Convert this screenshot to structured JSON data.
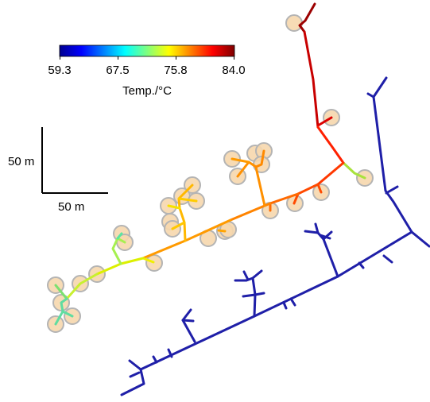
{
  "colorbar": {
    "title": "Temp./°C",
    "ticks": [
      "59.3",
      "67.5",
      "75.8",
      "84.0"
    ],
    "min": 59.3,
    "max": 84.0,
    "colormap": "jet"
  },
  "scale_bar": {
    "vertical_label": "50 m",
    "horizontal_label": "50 m"
  },
  "colors": {
    "background": "#ffffff",
    "consumer_marker_fill": "#f6d7ad",
    "consumer_marker_stroke": "#b4b4b4",
    "return_network": "#1f1fa8"
  }
}
